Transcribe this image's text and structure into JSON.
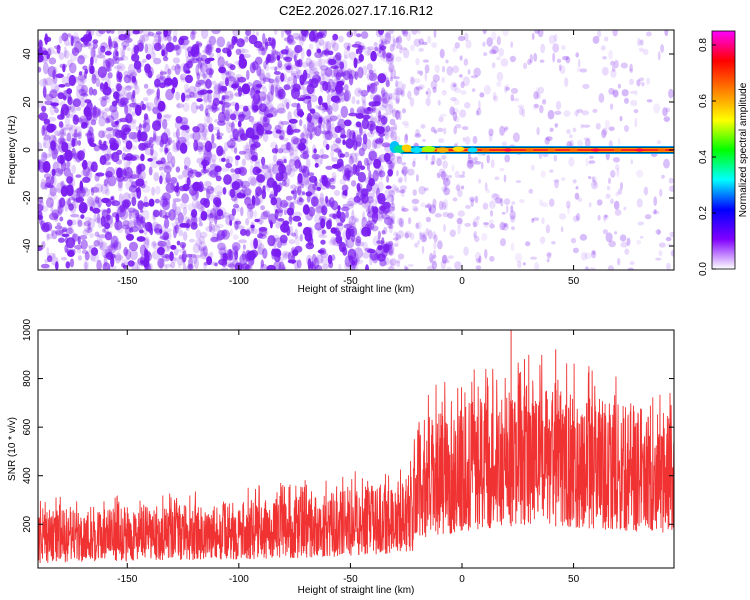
{
  "title": "C2E2.2026.027.17.16.R12",
  "chart_data": [
    {
      "type": "heatmap",
      "xlabel": "Height of straight line (km)",
      "ylabel": "Frequency (Hz)",
      "xlim": [
        -190,
        95
      ],
      "ylim": [
        -50,
        50
      ],
      "xticks": [
        -150,
        -100,
        -50,
        0,
        50
      ],
      "yticks": [
        -40,
        -20,
        0,
        20,
        40
      ],
      "colorbar": {
        "label": "Normalized spectral amplitude",
        "range": [
          0,
          0.85
        ],
        "ticks": [
          0.0,
          0.2,
          0.4,
          0.6,
          0.8
        ],
        "colormap": [
          "#ffffff",
          "#8000ff",
          "#0000ff",
          "#00ffff",
          "#00ff00",
          "#ffff00",
          "#ff8000",
          "#ff0000",
          "#ff00ff"
        ]
      },
      "features": {
        "noise_region": [
          -190,
          -32
        ],
        "faint_noise_region": [
          -32,
          95
        ],
        "signal_line": {
          "x_start": -32,
          "x_end": 95,
          "frequency": 0
        }
      },
      "noise_color": "#7a1cf0"
    },
    {
      "type": "line",
      "xlabel": "Height of straight line (km)",
      "ylabel": "SNR (10 * v/v)",
      "xlim": [
        -190,
        95
      ],
      "ylim": [
        20,
        1000
      ],
      "xticks": [
        -150,
        -100,
        -50,
        0,
        50
      ],
      "yticks": [
        200,
        400,
        600,
        800,
        1000
      ],
      "series": [
        {
          "color": "#f03232",
          "envelope": [
            {
              "x": -190,
              "low": 40,
              "high": 260
            },
            {
              "x": -150,
              "low": 50,
              "high": 270
            },
            {
              "x": -100,
              "low": 55,
              "high": 290
            },
            {
              "x": -60,
              "low": 65,
              "high": 330
            },
            {
              "x": -30,
              "low": 80,
              "high": 380
            },
            {
              "x": -22,
              "low": 90,
              "high": 420
            },
            {
              "x": -20,
              "low": 140,
              "high": 620
            },
            {
              "x": 0,
              "low": 170,
              "high": 700
            },
            {
              "x": 30,
              "low": 200,
              "high": 780
            },
            {
              "x": 60,
              "low": 180,
              "high": 720
            },
            {
              "x": 95,
              "low": 160,
              "high": 640
            }
          ],
          "peaks": [
            {
              "x": 22,
              "y": 1000
            },
            {
              "x": 42,
              "y": 920
            },
            {
              "x": 28,
              "y": 880
            }
          ]
        }
      ]
    }
  ]
}
